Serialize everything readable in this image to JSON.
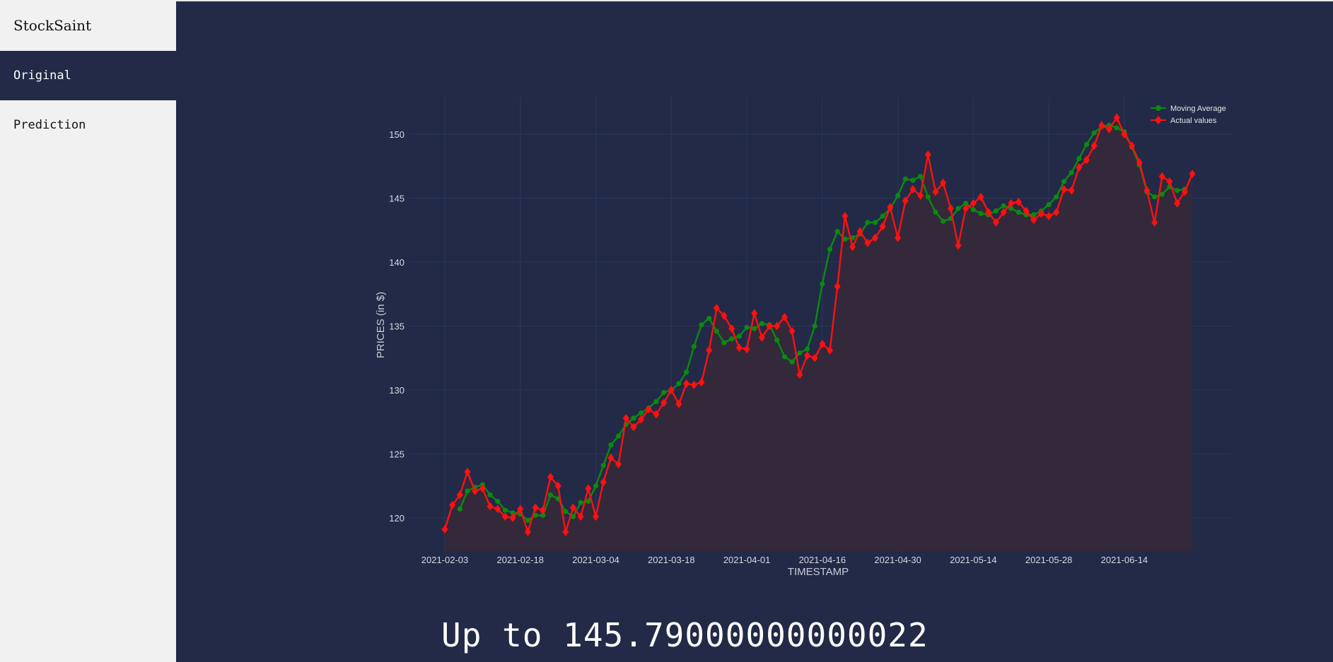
{
  "app": {
    "brand": "StockSaint"
  },
  "sidebar": {
    "items": [
      {
        "label": "Original",
        "active": true
      },
      {
        "label": "Prediction",
        "active": false
      }
    ]
  },
  "colors": {
    "background": "#222a47",
    "sidebar": "#f1f1f1",
    "moving_average": "#0a8a10",
    "actual": "#ff1010",
    "area_fill": "#33293a"
  },
  "chart_data": {
    "type": "line",
    "xlabel": "TIMESTAMP",
    "ylabel": "PRICES (in $)",
    "ylim": [
      117.3,
      153.0
    ],
    "yticks": [
      120,
      125,
      130,
      135,
      140,
      145,
      150
    ],
    "xticks": [
      "2021-02-03",
      "2021-02-18",
      "2021-03-04",
      "2021-03-18",
      "2021-04-01",
      "2021-04-16",
      "2021-04-30",
      "2021-05-14",
      "2021-05-28",
      "2021-06-14"
    ],
    "legend": "top-right",
    "grid": true,
    "series": [
      {
        "name": "Moving Average",
        "color": "#0a8a10",
        "marker": "circle",
        "start_index": 2,
        "values": [
          120.7,
          122.1,
          122.4,
          122.6,
          121.8,
          121.3,
          120.6,
          120.4,
          120.3,
          119.8,
          120.2,
          120.2,
          121.8,
          121.5,
          120.5,
          120.1,
          121.2,
          121.3,
          122.5,
          124.1,
          125.7,
          126.4,
          127.3,
          127.8,
          128.2,
          128.6,
          129.1,
          129.8,
          130.0,
          130.5,
          131.4,
          133.4,
          135.1,
          135.6,
          134.6,
          133.7,
          134.0,
          134.2,
          134.9,
          134.8,
          135.2,
          135.1,
          133.9,
          132.6,
          132.2,
          132.9,
          133.2,
          135.0,
          138.3,
          141.0,
          142.4,
          141.8,
          141.9,
          142.2,
          143.1,
          143.1,
          143.6,
          144.2,
          145.2,
          146.5,
          146.4,
          146.7,
          145.1,
          143.9,
          143.2,
          143.4,
          144.2,
          144.6,
          144.1,
          143.8,
          143.7,
          144.0,
          144.4,
          144.2,
          143.9,
          143.7,
          143.7,
          144.0,
          144.5,
          145.1,
          146.3,
          147.0,
          148.1,
          149.2,
          150.1,
          150.6,
          150.7,
          150.5,
          150.2,
          149.0,
          147.6,
          145.5,
          145.1,
          145.3,
          145.9,
          145.6,
          145.7
        ]
      },
      {
        "name": "Actual values",
        "color": "#ff1010",
        "marker": "diamond",
        "start_index": 0,
        "values": [
          119.1,
          121.0,
          121.8,
          123.6,
          122.1,
          122.3,
          120.9,
          120.7,
          120.1,
          120.0,
          120.7,
          118.9,
          120.8,
          120.6,
          123.2,
          122.5,
          118.9,
          120.8,
          120.1,
          122.3,
          120.1,
          122.8,
          124.7,
          124.2,
          127.8,
          127.1,
          127.7,
          128.5,
          128.1,
          129.0,
          130.0,
          128.9,
          130.5,
          130.4,
          130.6,
          133.1,
          136.4,
          135.8,
          134.8,
          133.3,
          133.2,
          136.0,
          134.1,
          135.0,
          135.0,
          135.7,
          134.6,
          131.2,
          132.7,
          132.5,
          133.6,
          133.1,
          138.1,
          143.6,
          141.2,
          142.4,
          141.5,
          141.9,
          142.8,
          144.3,
          141.9,
          144.8,
          145.7,
          145.2,
          148.4,
          145.5,
          146.2,
          144.2,
          141.3,
          144.2,
          144.6,
          145.1,
          143.9,
          143.1,
          143.9,
          144.6,
          144.7,
          144.0,
          143.3,
          143.8,
          143.6,
          143.9,
          145.7,
          145.6,
          147.4,
          148.0,
          149.1,
          150.7,
          150.4,
          151.3,
          150.0,
          149.1,
          147.8,
          145.6,
          143.1,
          146.7,
          146.3,
          144.6,
          145.5,
          146.9
        ]
      }
    ]
  },
  "result": {
    "text": "Up to 145.79000000000022"
  }
}
